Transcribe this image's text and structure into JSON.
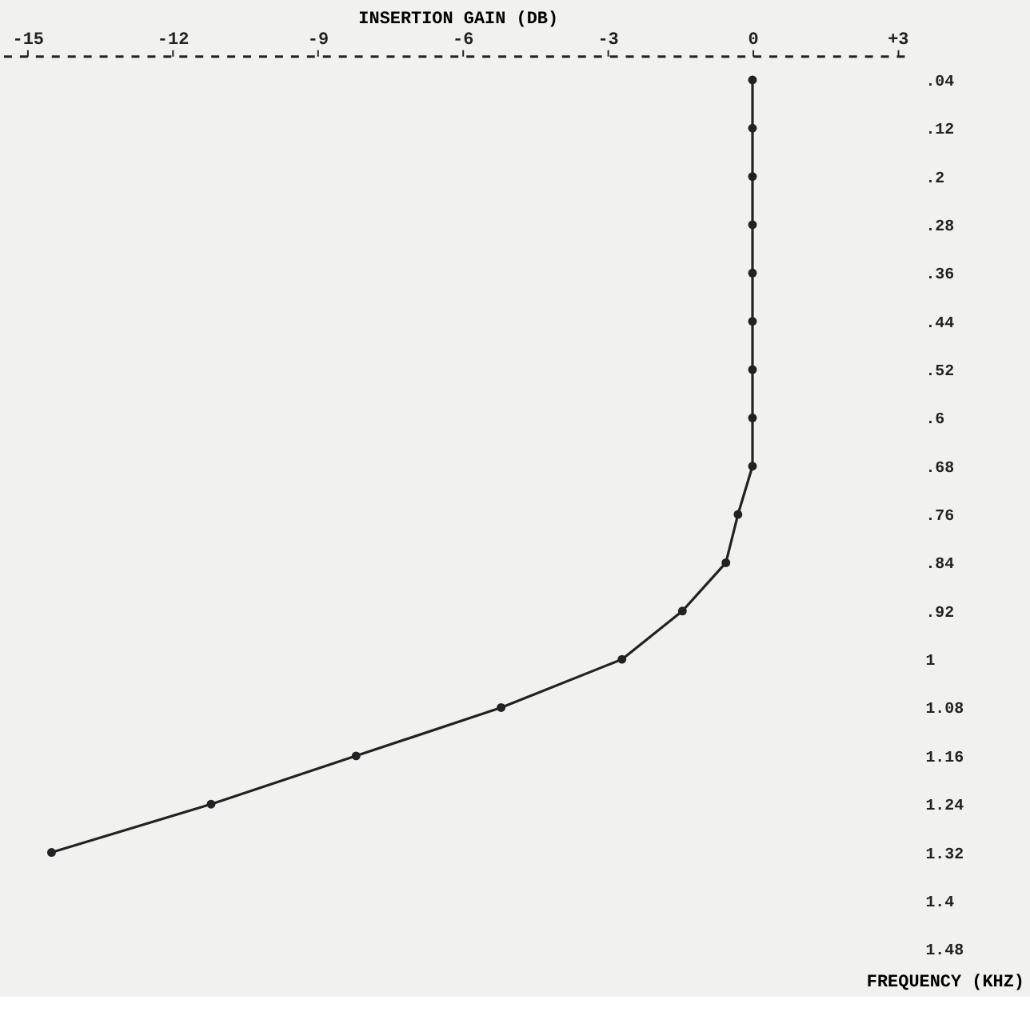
{
  "chart_data": {
    "type": "line",
    "xlabel": "INSERTION GAIN (DB)",
    "ylabel": "FREQUENCY (KHZ)",
    "x": [
      0,
      0,
      0,
      0,
      0,
      0,
      0,
      0,
      0,
      -0.3,
      -0.55,
      -1.45,
      -2.7,
      -5.2,
      -8.2,
      -11.2,
      -14.5
    ],
    "series": [
      {
        "color": "#222222",
        "values": [
          0.04,
          0.12,
          0.2,
          0.28,
          0.36,
          0.44,
          0.52,
          0.6,
          0.68,
          0.76,
          0.84,
          0.92,
          1.0,
          1.08,
          1.16,
          1.24,
          1.32
        ]
      }
    ],
    "xlim": [
      -15.5,
      3.3
    ],
    "ylim": [
      1.48,
      0
    ],
    "xticks": [
      -15,
      -12,
      -9,
      -6,
      -3,
      0,
      {
        "value": 3,
        "label": "+3"
      }
    ],
    "yticks": [
      {
        "value": 0.04,
        "label": ".04"
      },
      {
        "value": 0.12,
        "label": ".12"
      },
      {
        "value": 0.2,
        "label": ".2"
      },
      {
        "value": 0.28,
        "label": ".28"
      },
      {
        "value": 0.36,
        "label": ".36"
      },
      {
        "value": 0.44,
        "label": ".44"
      },
      {
        "value": 0.52,
        "label": ".52"
      },
      {
        "value": 0.6,
        "label": ".6"
      },
      {
        "value": 0.68,
        "label": ".68"
      },
      {
        "value": 0.76,
        "label": ".76"
      },
      {
        "value": 0.84,
        "label": ".84"
      },
      {
        "value": 0.92,
        "label": ".92"
      },
      {
        "value": 1.0,
        "label": "1"
      },
      {
        "value": 1.08,
        "label": "1.08"
      },
      {
        "value": 1.16,
        "label": "1.16"
      },
      {
        "value": 1.24,
        "label": "1.24"
      },
      {
        "value": 1.32,
        "label": "1.32"
      },
      {
        "value": 1.4,
        "label": "1.4"
      },
      {
        "value": 1.48,
        "label": "1.48"
      }
    ],
    "marker": "circle",
    "line_style": "solid"
  }
}
